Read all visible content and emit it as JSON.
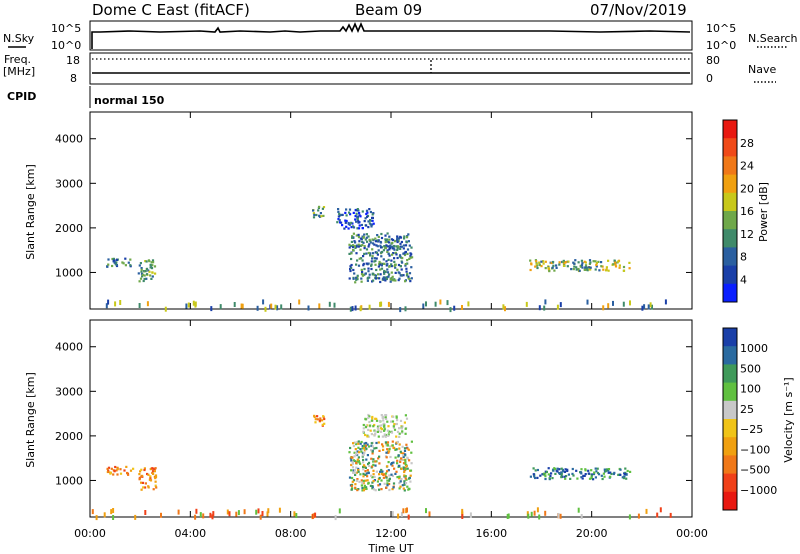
{
  "header": {
    "radar": "Dome C East (fitACF)",
    "beam": "Beam 09",
    "date": "07/Nov/2019",
    "nsky_label": "N.Sky",
    "nsearch_label": "N.Search",
    "freq_label": "Freq.",
    "freq_unit": "[MHz]",
    "nave_label": "Nave",
    "cpid_label": "CPID",
    "cpid_value": "normal 150",
    "noise_ticks": [
      "10^5",
      "10^0"
    ],
    "freq_ticks": [
      "18",
      "8"
    ],
    "nave_ticks": [
      "80",
      "0"
    ]
  },
  "colors": {
    "power_scale": [
      "#0a1fff",
      "#1a3fa8",
      "#2a5fa0",
      "#3f8a6a",
      "#6fa84a",
      "#c8c81a",
      "#f0a010",
      "#f07818",
      "#f04a18",
      "#e81810"
    ],
    "velocity_scale": [
      "#e81810",
      "#f04018",
      "#f07818",
      "#f0a010",
      "#f0c418",
      "#c8c8c8",
      "#60c040",
      "#3f9a5a",
      "#2a6aa0",
      "#1a3fa8"
    ]
  },
  "chart_data": [
    {
      "type": "heatmap",
      "panel": "power",
      "ylabel": "Slant Range [km]",
      "ylim": [
        180,
        4600
      ],
      "yticks": [
        1000,
        2000,
        3000,
        4000
      ],
      "xlim": [
        0,
        24
      ],
      "colorbar_label": "Power [dB]",
      "colorbar_ticks": [
        "28",
        "24",
        "20",
        "16",
        "12",
        "8",
        "4"
      ],
      "clusters": [
        {
          "t": [
            0.6,
            1.7
          ],
          "r": [
            1150,
            1350
          ],
          "level": "mid-low"
        },
        {
          "t": [
            1.9,
            2.6
          ],
          "r": [
            800,
            1300
          ],
          "level": "mid"
        },
        {
          "t": [
            8.8,
            9.3
          ],
          "r": [
            2250,
            2500
          ],
          "level": "mid"
        },
        {
          "t": [
            9.8,
            11.3
          ],
          "r": [
            2000,
            2450
          ],
          "level": "low"
        },
        {
          "t": [
            10.3,
            12.8
          ],
          "r": [
            800,
            1900
          ],
          "level": "mid-low"
        },
        {
          "t": [
            17.5,
            21.5
          ],
          "r": [
            1050,
            1300
          ],
          "level": "mid-high"
        }
      ]
    },
    {
      "type": "heatmap",
      "panel": "velocity",
      "ylabel": "Slant Range [km]",
      "ylim": [
        180,
        4600
      ],
      "yticks": [
        1000,
        2000,
        3000,
        4000
      ],
      "xlim": [
        0,
        24
      ],
      "xticks": [
        "00:00",
        "04:00",
        "08:00",
        "12:00",
        "16:00",
        "20:00",
        "00:00"
      ],
      "xlabel": "Time UT",
      "colorbar_label": "Velocity [m s⁻¹]",
      "colorbar_ticks": [
        "1000",
        "500",
        "100",
        "25",
        "−25",
        "−100",
        "−500",
        "−1000"
      ],
      "clusters": [
        {
          "t": [
            0.6,
            1.7
          ],
          "r": [
            1150,
            1350
          ],
          "level": "negative"
        },
        {
          "t": [
            1.9,
            2.6
          ],
          "r": [
            800,
            1300
          ],
          "level": "negative"
        },
        {
          "t": [
            8.8,
            9.3
          ],
          "r": [
            2250,
            2500
          ],
          "level": "negative"
        },
        {
          "t": [
            10.8,
            12.6
          ],
          "r": [
            2000,
            2500
          ],
          "level": "near-zero"
        },
        {
          "t": [
            10.3,
            12.8
          ],
          "r": [
            800,
            1900
          ],
          "level": "mixed"
        },
        {
          "t": [
            17.5,
            21.5
          ],
          "r": [
            1050,
            1300
          ],
          "level": "positive"
        }
      ]
    }
  ]
}
